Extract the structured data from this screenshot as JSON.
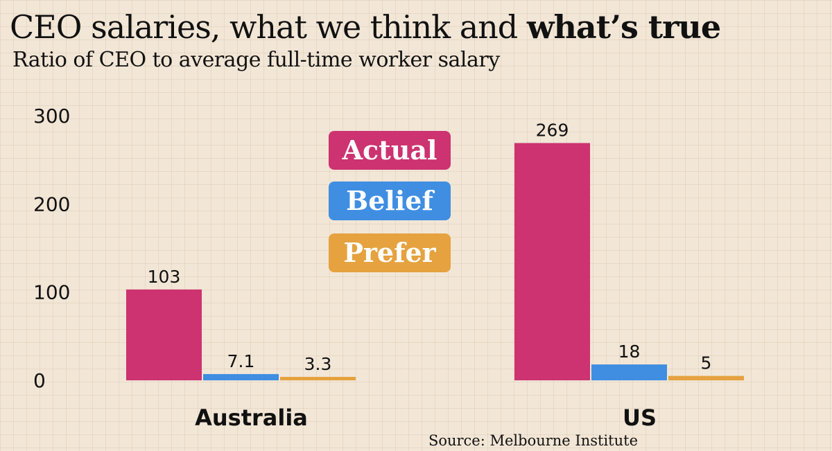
{
  "title": {
    "plain": "CEO salaries, what we think and ",
    "bold": "what’s true"
  },
  "subtitle": "Ratio of CEO to average full-time worker salary",
  "source": "Source: Melbourne Institute",
  "chart_data": {
    "type": "bar",
    "categories": [
      "Australia",
      "US"
    ],
    "series": [
      {
        "name": "Actual",
        "color": "#cc3370",
        "values": [
          103,
          269
        ],
        "labels": [
          "103",
          "269"
        ]
      },
      {
        "name": "Belief",
        "color": "#3f8ee2",
        "values": [
          7.1,
          18
        ],
        "labels": [
          "7.1",
          "18"
        ]
      },
      {
        "name": "Prefer",
        "color": "#e5a23f",
        "values": [
          3.3,
          5
        ],
        "labels": [
          "3.3",
          "5"
        ]
      }
    ],
    "ylim": [
      0,
      300
    ],
    "yticks": [
      0,
      100,
      200,
      300
    ],
    "grid": true,
    "legend_position": "center"
  }
}
